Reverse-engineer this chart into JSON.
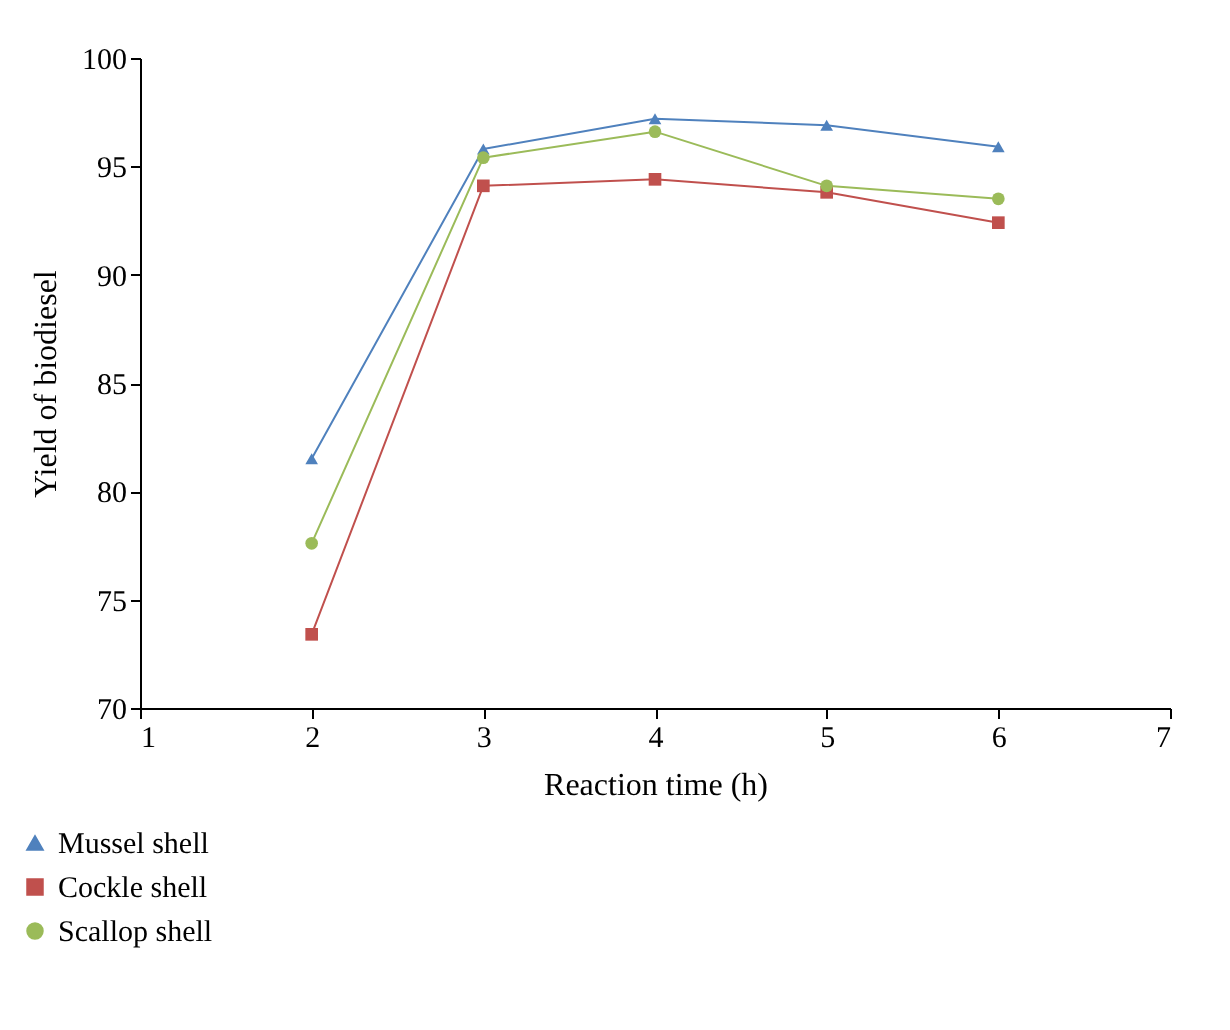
{
  "chart_data": {
    "type": "line",
    "xlabel": "Reaction time (h)",
    "ylabel": "Yield of biodiesel",
    "x": [
      2,
      3,
      4,
      5,
      6
    ],
    "xlim": [
      1,
      7
    ],
    "xticks": [
      1,
      2,
      3,
      4,
      5,
      6,
      7
    ],
    "ylim": [
      70,
      100
    ],
    "yticks": [
      70,
      75,
      80,
      85,
      90,
      95,
      100
    ],
    "grid": false,
    "legend": "bottom left",
    "line_style": "solid",
    "series": [
      {
        "name": "Mussel shell",
        "color": "#4f81bd",
        "marker": "triangle",
        "values": [
          81.5,
          95.8,
          97.2,
          96.9,
          95.9
        ]
      },
      {
        "name": "Cockle shell",
        "color": "#c0504d",
        "marker": "square",
        "values": [
          73.4,
          94.1,
          94.4,
          93.8,
          92.4
        ]
      },
      {
        "name": "Scallop shell",
        "color": "#9bbb59",
        "marker": "circle",
        "values": [
          77.6,
          95.4,
          96.6,
          94.1,
          93.5
        ]
      }
    ]
  }
}
